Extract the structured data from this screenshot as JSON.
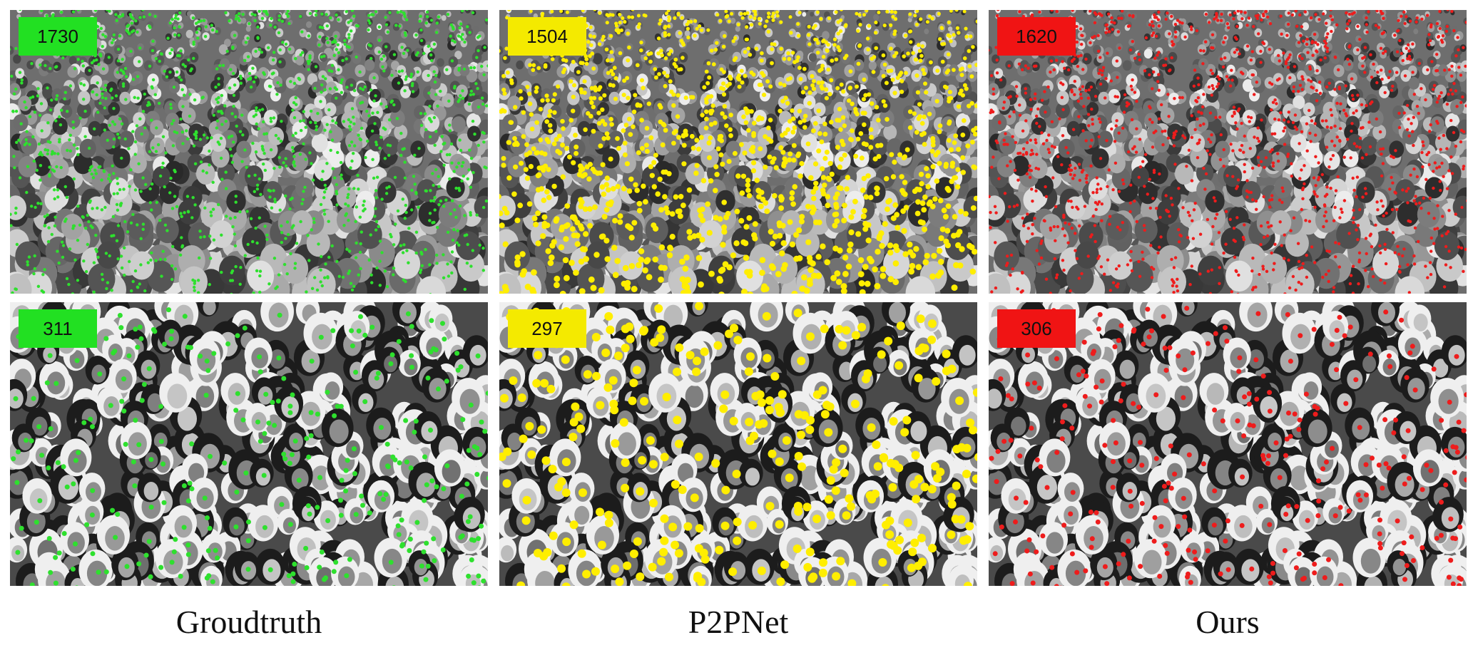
{
  "panels": [
    {
      "row": 0,
      "col": 0,
      "count": "1730",
      "dot_color": "#2ee02e",
      "badge_color": "#22e022",
      "dense": true
    },
    {
      "row": 0,
      "col": 1,
      "count": "1504",
      "dot_color": "#ffee00",
      "badge_color": "#f4ea00",
      "dense": true
    },
    {
      "row": 0,
      "col": 2,
      "count": "1620",
      "dot_color": "#ee1c1c",
      "badge_color": "#f01414",
      "dense": true
    },
    {
      "row": 1,
      "col": 0,
      "count": "311",
      "dot_color": "#2ee02e",
      "badge_color": "#22e022",
      "dense": false
    },
    {
      "row": 1,
      "col": 1,
      "count": "297",
      "dot_color": "#ffee00",
      "badge_color": "#f4ea00",
      "dense": false
    },
    {
      "row": 1,
      "col": 2,
      "count": "306",
      "dot_color": "#ee1c1c",
      "badge_color": "#f01414",
      "dense": false
    }
  ],
  "captions": {
    "groundtruth": "Groudtruth",
    "p2pnet": "P2PNet",
    "ours": "Ours"
  }
}
